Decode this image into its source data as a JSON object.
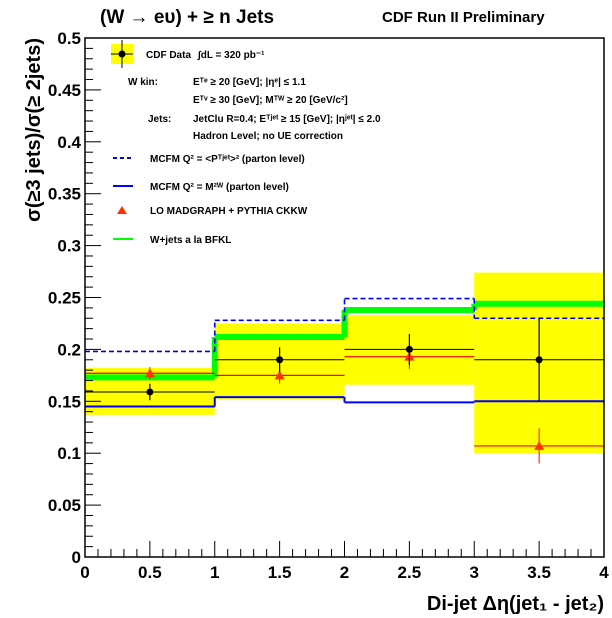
{
  "header": {
    "title_left": "(W → eυ) + ≥ n Jets",
    "title_right": "CDF Run II Preliminary"
  },
  "legend": {
    "data_label": "CDF Data",
    "lumi": "∫dL = 320 pb⁻¹",
    "wkin_label": "W kin:",
    "wkin_line1": "Eᵀᵉ ≥ 20 [GeV]; |ηᵉ| ≤ 1.1",
    "wkin_line2": "Eᵀᵛ ≥ 30 [GeV]; Mᵀᵂ ≥ 20 [GeV/c²]",
    "jets_label": "Jets:",
    "jets_line1": "JetClu R=0.4; Eᵀʲᵉᵗ ≥ 15 [GeV]; |ηʲᵉᵗ| ≤ 2.0",
    "jets_line2": "Hadron Level; no UE correction",
    "mcfm_pt": "MCFM Q² = <Pᵀʲᵉᵗ>² (parton level)",
    "mcfm_mw": "MCFM Q² = M²ᵂ (parton level)",
    "madgraph": "LO MADGRAPH + PYTHIA CKKW",
    "bfkl": "W+jets a la BFKL"
  },
  "colors": {
    "band": "#ffff00",
    "data": "#000000",
    "mcfm_pt": "#0000ff",
    "mcfm_mw": "#0000ff",
    "madgraph": "#ff0000",
    "madgraph_marker": "#ff3300",
    "bfkl": "#00ff00"
  },
  "chart_data": {
    "type": "step",
    "xlabel": "Di-jet Δη(jet₁ - jet₂)",
    "ylabel": "σ(≥3 jets)/σ(≥ 2jets)",
    "xlim": [
      0,
      4
    ],
    "ylim": [
      0,
      0.5
    ],
    "x_ticks": [
      0,
      0.5,
      1,
      1.5,
      2,
      2.5,
      3,
      3.5,
      4
    ],
    "x_tick_labels": [
      "0",
      "0.5",
      "1",
      "1.5",
      "2",
      "2.5",
      "3",
      "3.5",
      "4"
    ],
    "y_ticks": [
      0,
      0.05,
      0.1,
      0.15,
      0.2,
      0.25,
      0.3,
      0.35,
      0.4,
      0.45,
      0.5
    ],
    "y_tick_labels": [
      "0",
      "0.05",
      "0.1",
      "0.15",
      "0.2",
      "0.25",
      "0.3",
      "0.35",
      "0.4",
      "0.45",
      "0.5"
    ],
    "bin_edges": [
      0,
      1,
      2,
      3,
      4
    ],
    "bin_centers": [
      0.5,
      1.5,
      2.5,
      3.5
    ],
    "data": {
      "name": "CDF Data",
      "values": [
        0.159,
        0.19,
        0.2,
        0.19
      ],
      "stat_err": [
        0.008,
        0.012,
        0.015,
        0.04
      ],
      "band_low": [
        0.137,
        0.152,
        0.166,
        0.1
      ],
      "band_high": [
        0.182,
        0.225,
        0.233,
        0.274
      ]
    },
    "series": [
      {
        "name": "MCFM Q² = <Pᵀʲᵉᵗ>² (parton level)",
        "values": [
          0.198,
          0.228,
          0.249,
          0.23
        ]
      },
      {
        "name": "MCFM Q² = M²ᵂ (parton level)",
        "values": [
          0.145,
          0.154,
          0.149,
          0.15
        ]
      },
      {
        "name": "W+jets a la BFKL",
        "values": [
          0.173,
          0.212,
          0.238,
          0.244
        ]
      },
      {
        "name": "LO MADGRAPH + PYTHIA CKKW",
        "values": [
          0.177,
          0.175,
          0.193,
          0.107
        ],
        "errors": [
          0.006,
          0.008,
          0.012,
          0.017
        ]
      }
    ]
  }
}
